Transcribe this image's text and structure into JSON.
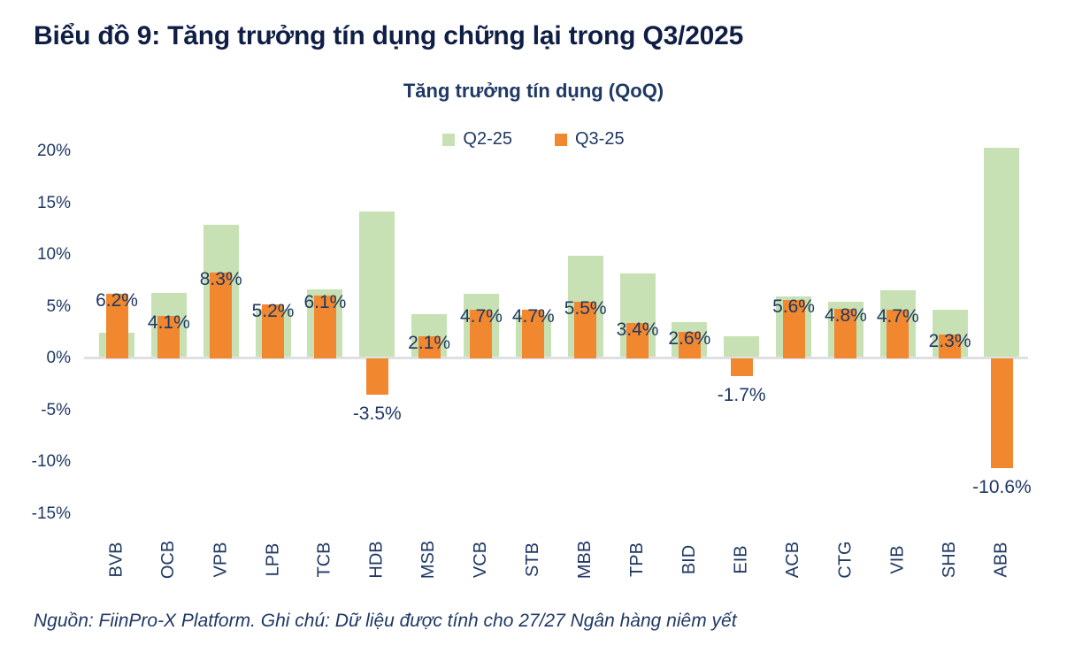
{
  "page": {
    "title": "Biểu đồ 9: Tăng trưởng tín dụng chững lại trong Q3/2025",
    "footer": "Nguồn: FiinPro-X Platform. Ghi chú: Dữ liệu được tính cho 27/27 Ngân hàng niêm yết"
  },
  "chart_data": {
    "type": "bar",
    "title": "Tăng trưởng tín dụng (QoQ)",
    "categories": [
      "BVB",
      "OCB",
      "VPB",
      "LPB",
      "TCB",
      "HDB",
      "MSB",
      "VCB",
      "STB",
      "MBB",
      "TPB",
      "BID",
      "EIB",
      "ACB",
      "CTG",
      "VIB",
      "SHB",
      "ABB"
    ],
    "series": [
      {
        "name": "Q2-25",
        "color": "#c7e1b5",
        "values": [
          2.5,
          6.3,
          12.9,
          4.8,
          6.7,
          14.2,
          4.3,
          6.2,
          4.2,
          9.9,
          8.2,
          3.5,
          2.1,
          6.0,
          5.5,
          6.6,
          4.7,
          20.3
        ]
      },
      {
        "name": "Q3-25",
        "color": "#f1872f",
        "values": [
          6.2,
          4.1,
          8.3,
          5.2,
          6.1,
          -3.5,
          2.1,
          4.7,
          4.7,
          5.5,
          3.4,
          2.6,
          -1.7,
          5.6,
          4.8,
          4.7,
          2.3,
          -10.6
        ],
        "data_labels": [
          "6.2%",
          "4.1%",
          "8.3%",
          "5.2%",
          "6.1%",
          "-3.5%",
          "2.1%",
          "4.7%",
          "4.7%",
          "5.5%",
          "3.4%",
          "2.6%",
          "-1.7%",
          "5.6%",
          "4.8%",
          "4.7%",
          "2.3%",
          "-10.6%"
        ]
      }
    ],
    "xlabel": "",
    "ylabel": "",
    "ylim": [
      -15,
      20
    ],
    "y_ticks": [
      {
        "label": "20%",
        "value": 20
      },
      {
        "label": "15%",
        "value": 15
      },
      {
        "label": "10%",
        "value": 10
      },
      {
        "label": "5%",
        "value": 5
      },
      {
        "label": "0%",
        "value": 0
      },
      {
        "label": "-5%",
        "value": -5
      },
      {
        "label": "-10%",
        "value": -10
      },
      {
        "label": "-15%",
        "value": -15
      }
    ],
    "grid": false,
    "legend_position": "top",
    "unit": "%",
    "colors": {
      "q2_green": "#c7e1b5",
      "q3_orange": "#f1872f",
      "text_navy": "#1f3864",
      "title_navy": "#0f1e45",
      "axis_line_gray": "#e0e0e0"
    }
  }
}
